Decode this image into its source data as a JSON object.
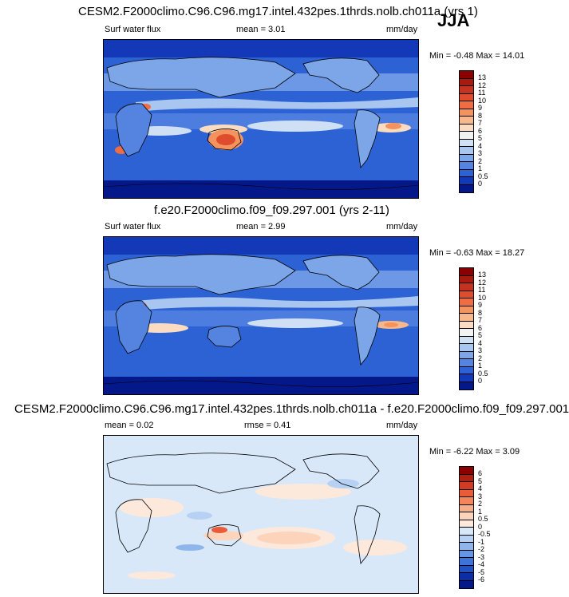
{
  "season": "JJA",
  "panels": [
    {
      "title": "CESM2.F2000climo.C96.C96.mg17.intel.432pes.1thrds.nolb.ch011a (yrs 1)",
      "left_label": "Surf water flux",
      "mean_label": "mean =  3.01",
      "rmse_label": "",
      "units": "mm/day",
      "minmax": "Min =  -0.48 Max =  14.01"
    },
    {
      "title": "f.e20.F2000climo.f09_f09.297.001 (yrs 2-11)",
      "left_label": "Surf water flux",
      "mean_label": "mean =  2.99",
      "rmse_label": "",
      "units": "mm/day",
      "minmax": "Min =  -0.63 Max =  18.27"
    },
    {
      "title": "CESM2.F2000climo.C96.C96.mg17.intel.432pes.1thrds.nolb.ch011a - f.e20.F2000climo.f09_f09.297.001",
      "left_label": "",
      "mean_label": "mean =  0.02",
      "rmse_label": "rmse =  0.41",
      "units": "mm/day",
      "minmax": "Min =  -6.22 Max =  3.09"
    }
  ],
  "colorbars": {
    "abs": {
      "labels": [
        "13",
        "12",
        "11",
        "10",
        "9",
        "8",
        "7",
        "6",
        "5",
        "4",
        "3",
        "2",
        "1",
        "0.5",
        "0"
      ],
      "colors": [
        "#8b0000",
        "#a81a10",
        "#c63222",
        "#df4c2d",
        "#ee6d42",
        "#f4935e",
        "#f8b88b",
        "#fbdcc0",
        "#f2f2f2",
        "#cfe0f5",
        "#a8c6ef",
        "#7da6e8",
        "#5584e0",
        "#2d62d4",
        "#1338b8",
        "#05188a"
      ]
    },
    "diff": {
      "labels": [
        "6",
        "5",
        "4",
        "3",
        "2",
        "1",
        "0.5",
        "0",
        "-0.5",
        "-1",
        "-2",
        "-3",
        "-4",
        "-5",
        "-6"
      ],
      "colors": [
        "#8b0000",
        "#b01f12",
        "#d13a25",
        "#e95c3a",
        "#f2855a",
        "#f7ad87",
        "#fbd4bb",
        "#fde9dc",
        "#d9e8f8",
        "#b6d1f3",
        "#8fb6ec",
        "#6595e3",
        "#3e73d8",
        "#2051c6",
        "#0c2fa8",
        "#05188a"
      ]
    }
  }
}
